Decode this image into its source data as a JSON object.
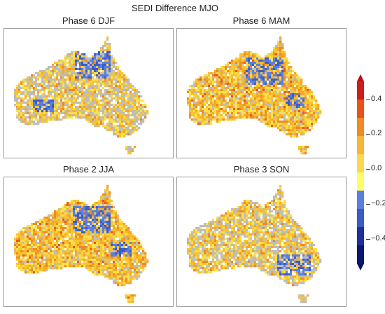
{
  "title": "SEDI Difference MJO",
  "panels": [
    {
      "title": "Phase 6 DJF",
      "dominant": "mixed-grey-yellow",
      "blue_region": "north-gulf"
    },
    {
      "title": "Phase 6 MAM",
      "dominant": "yellow-orange",
      "blue_region": "north-central"
    },
    {
      "title": "Phase 2 JJA",
      "dominant": "yellow-orange",
      "blue_region": "north-central"
    },
    {
      "title": "Phase 3 SON",
      "dominant": "mixed-grey-yellow",
      "blue_region": "south-east"
    }
  ],
  "colorbar": {
    "ticks": [
      "0.4",
      "0.2",
      "0.0",
      "−0.2",
      "−0.4"
    ],
    "colors": [
      "#cc1f1a",
      "#e8531a",
      "#f08a24",
      "#f7b731",
      "#fbd94a",
      "#fffb6a",
      "#5a7ee0",
      "#3a5cc8",
      "#1f2f9e",
      "#0c1870"
    ]
  },
  "legend_colors": {
    "missing": "#bdbdbd",
    "land_outline": "#ffffff"
  }
}
